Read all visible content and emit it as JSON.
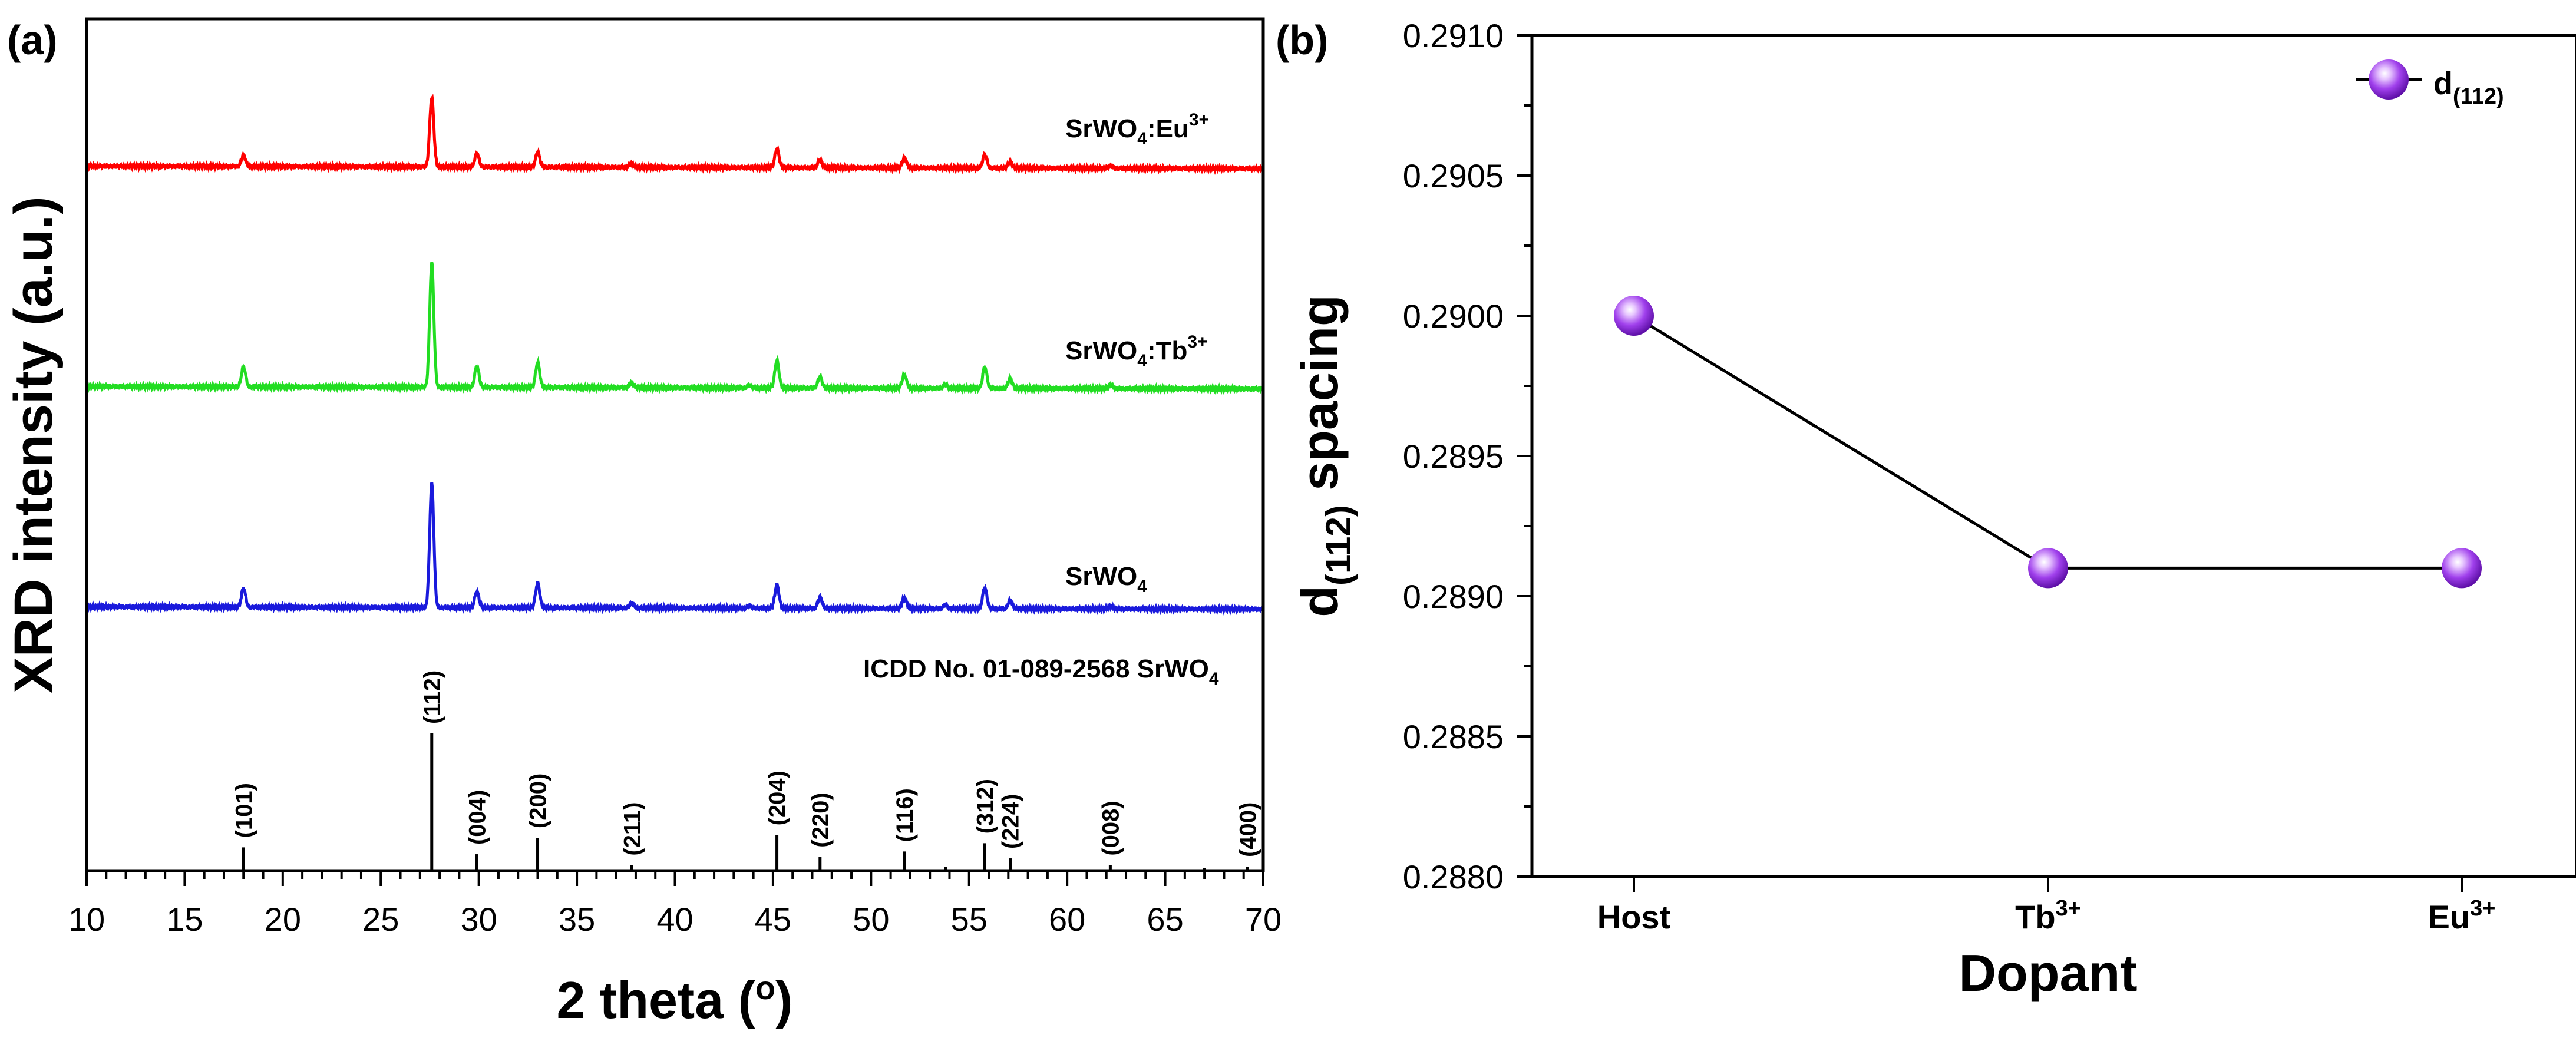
{
  "chart_data": [
    {
      "panel_label": "(a)",
      "type": "line",
      "xlabel_main": "2 theta (",
      "xlabel_sup": "o",
      "xlabel_end": ")",
      "ylabel": "XRD intensity (a.u.)",
      "xlim": [
        10,
        70
      ],
      "x_ticks": [
        "10",
        "15",
        "20",
        "25",
        "30",
        "35",
        "40",
        "45",
        "50",
        "55",
        "60",
        "65",
        "70"
      ],
      "series": [
        {
          "label_main": "SrWO",
          "label_sub": "4",
          "label_rest": ":Eu",
          "label_sup": "3+",
          "color": "#ff0000",
          "peaks": [
            [
              18.0,
              0.09
            ],
            [
              27.6,
              0.56
            ],
            [
              29.9,
              0.11
            ],
            [
              33.0,
              0.12
            ],
            [
              37.8,
              0.03
            ],
            [
              45.2,
              0.15
            ],
            [
              47.4,
              0.06
            ],
            [
              51.7,
              0.08
            ],
            [
              55.8,
              0.11
            ],
            [
              57.1,
              0.05
            ],
            [
              62.2,
              0.02
            ]
          ]
        },
        {
          "label_main": "SrWO",
          "label_sub": "4",
          "label_rest": ":Tb",
          "label_sup": "3+",
          "color": "#22dd22",
          "peaks": [
            [
              18.0,
              0.16
            ],
            [
              27.6,
              1.0
            ],
            [
              29.9,
              0.17
            ],
            [
              33.0,
              0.2
            ],
            [
              37.8,
              0.04
            ],
            [
              43.8,
              0.02
            ],
            [
              45.2,
              0.22
            ],
            [
              47.4,
              0.09
            ],
            [
              51.7,
              0.11
            ],
            [
              53.8,
              0.03
            ],
            [
              55.8,
              0.17
            ],
            [
              57.1,
              0.08
            ],
            [
              62.2,
              0.03
            ]
          ]
        },
        {
          "label_main": "SrWO",
          "label_sub": "4",
          "label_rest": "",
          "label_sup": "",
          "color": "#1a1adc",
          "peaks": [
            [
              18.0,
              0.15
            ],
            [
              27.6,
              1.0
            ],
            [
              29.9,
              0.13
            ],
            [
              33.0,
              0.2
            ],
            [
              37.8,
              0.04
            ],
            [
              43.8,
              0.02
            ],
            [
              45.2,
              0.19
            ],
            [
              47.4,
              0.09
            ],
            [
              51.7,
              0.09
            ],
            [
              53.8,
              0.03
            ],
            [
              55.8,
              0.17
            ],
            [
              57.1,
              0.07
            ],
            [
              62.2,
              0.02
            ]
          ]
        }
      ],
      "reference": {
        "label_main": "ICDD No. 01-089-2568 SrWO",
        "label_sub": "4",
        "lines": [
          {
            "x": 18.0,
            "h": 0.17,
            "hkl": "(101)"
          },
          {
            "x": 27.6,
            "h": 1.0,
            "hkl": "(112)"
          },
          {
            "x": 29.9,
            "h": 0.12,
            "hkl": "(004)"
          },
          {
            "x": 33.0,
            "h": 0.24,
            "hkl": "(200)"
          },
          {
            "x": 37.8,
            "h": 0.04,
            "hkl": "(211)"
          },
          {
            "x": 45.2,
            "h": 0.26,
            "hkl": "(204)"
          },
          {
            "x": 47.4,
            "h": 0.1,
            "hkl": "(220)"
          },
          {
            "x": 51.7,
            "h": 0.14,
            "hkl": "(116)"
          },
          {
            "x": 53.8,
            "h": 0.03,
            "hkl": ""
          },
          {
            "x": 55.8,
            "h": 0.2,
            "hkl": "(312)"
          },
          {
            "x": 57.1,
            "h": 0.09,
            "hkl": "(224)"
          },
          {
            "x": 62.2,
            "h": 0.04,
            "hkl": "(008)"
          },
          {
            "x": 67.0,
            "h": 0.02,
            "hkl": ""
          },
          {
            "x": 69.2,
            "h": 0.03,
            "hkl": "(400)"
          }
        ]
      }
    },
    {
      "panel_label": "(b)",
      "type": "line",
      "categories": [
        "Host",
        "Tb",
        "Eu"
      ],
      "category_sups": [
        "",
        "3+",
        "3+"
      ],
      "values": [
        0.29,
        0.2891,
        0.2891
      ],
      "ylim": [
        0.288,
        0.291
      ],
      "y_ticks": [
        "0.2880",
        "0.2885",
        "0.2890",
        "0.2895",
        "0.2900",
        "0.2905",
        "0.2910"
      ],
      "xlabel": "Dopant",
      "ylabel_pre": "d",
      "ylabel_sub": "(112)",
      "ylabel_post": " spacing",
      "legend": {
        "main": "d",
        "sub": "(112)",
        "placement": "top-right"
      },
      "marker_color": "#8a2be2"
    }
  ]
}
